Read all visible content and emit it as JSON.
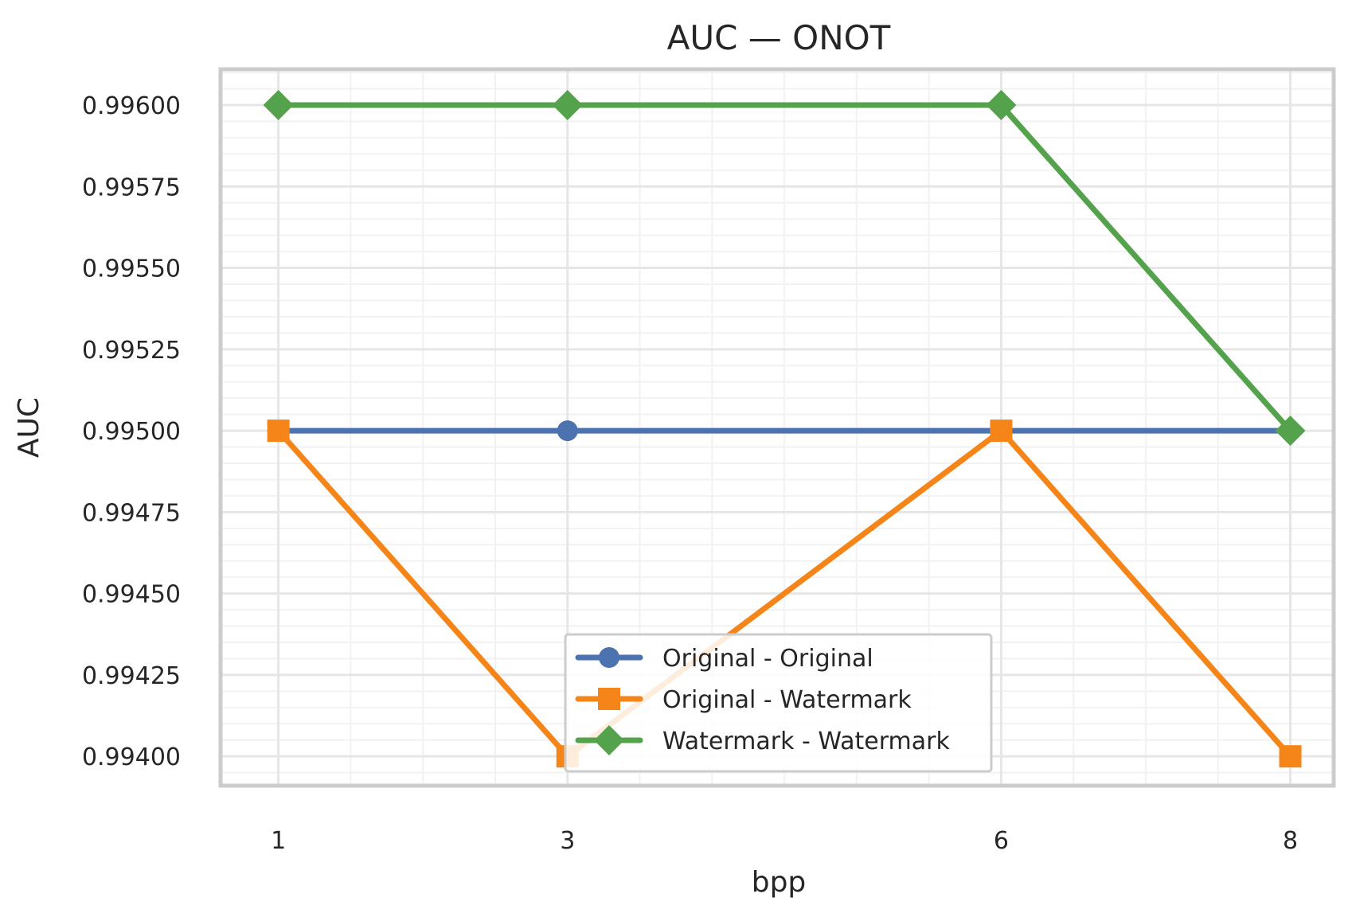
{
  "chart_data": {
    "type": "line",
    "title": "AUC — ONOT",
    "xlabel": "bpp",
    "ylabel": "AUC",
    "x": [
      1,
      3,
      6,
      8
    ],
    "xticks": [
      1,
      3,
      6,
      8
    ],
    "xtick_labels": [
      "1",
      "3",
      "6",
      "8"
    ],
    "yticks": [
      0.994,
      0.99425,
      0.9945,
      0.99475,
      0.995,
      0.99525,
      0.9955,
      0.99575,
      0.996
    ],
    "ytick_labels": [
      "0.99400",
      "0.99425",
      "0.99450",
      "0.99475",
      "0.99500",
      "0.99525",
      "0.99550",
      "0.99575",
      "0.99600"
    ],
    "xlim": [
      0.6,
      8.3
    ],
    "ylim": [
      0.99391,
      0.99611
    ],
    "grid": true,
    "minor_grid": true,
    "legend_position": "lower-center",
    "series": [
      {
        "name": "Original - Original",
        "values": [
          0.995,
          0.995,
          0.995,
          0.995
        ],
        "color": "#4c72b0",
        "marker": "circle"
      },
      {
        "name": "Original - Watermark",
        "values": [
          0.995,
          0.994,
          0.995,
          0.994
        ],
        "color": "#f58518",
        "marker": "square"
      },
      {
        "name": "Watermark - Watermark",
        "values": [
          0.996,
          0.996,
          0.996,
          0.995
        ],
        "color": "#54a24b",
        "marker": "diamond"
      }
    ]
  }
}
